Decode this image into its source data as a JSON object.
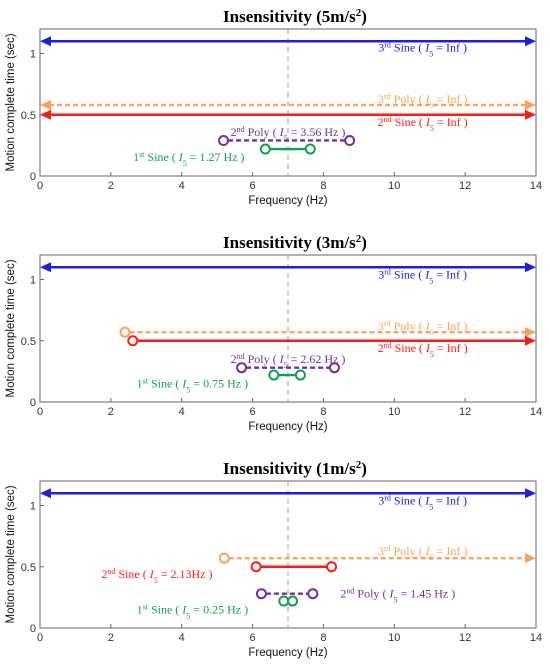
{
  "chart_data": [
    {
      "type": "interval",
      "title": "Insensitivity (5m/s2)",
      "title_main": "Insensitivity (5m/s",
      "title_exp": "2",
      "title_tail": ")",
      "xlabel": "Frequency (Hz)",
      "ylabel": "Motion complete time (sec)",
      "xlim": [
        0,
        14
      ],
      "ylim": [
        0,
        1.2
      ],
      "xticks": [
        "0",
        "2",
        "4",
        "6",
        "8",
        "10",
        "12",
        "14"
      ],
      "yticks": [
        "0",
        "0.5",
        "1"
      ],
      "reference_x": 7,
      "series": [
        {
          "key": "s3",
          "ord": "3",
          "sfx": "rd",
          "kind": "Sine",
          "y": 1.1,
          "x0": 0,
          "x1": 14,
          "open_left": true,
          "open_right": true,
          "value": "Inf",
          "unit": "",
          "color": "#1f1fd6",
          "dashed": false,
          "label_at": [
            10.8,
            1.05
          ]
        },
        {
          "key": "p3",
          "ord": "3",
          "sfx": "rd",
          "kind": "Poly",
          "y": 0.58,
          "x0": 0,
          "x1": 14,
          "open_left": true,
          "open_right": true,
          "value": "Inf",
          "unit": "",
          "color": "#f4a460",
          "dashed": true,
          "label_at": [
            10.8,
            0.63
          ]
        },
        {
          "key": "s2",
          "ord": "2",
          "sfx": "nd",
          "kind": "Sine",
          "y": 0.5,
          "x0": 0,
          "x1": 14,
          "open_left": true,
          "open_right": true,
          "value": "Inf",
          "unit": "",
          "color": "#ff1a1a",
          "dashed": false,
          "label_at": [
            10.8,
            0.44
          ]
        },
        {
          "key": "p2",
          "ord": "2",
          "sfx": "nd",
          "kind": "Poly",
          "y": 0.29,
          "x0": 5.18,
          "x1": 8.74,
          "open_left": false,
          "open_right": false,
          "value": "3.56",
          "unit": " Hz",
          "color": "#7030a0",
          "dashed": true,
          "label_at": [
            7.0,
            0.36
          ]
        },
        {
          "key": "s1",
          "ord": "1",
          "sfx": "st",
          "kind": "Sine",
          "y": 0.22,
          "x0": 6.36,
          "x1": 7.63,
          "open_left": false,
          "open_right": false,
          "value": "1.27",
          "unit": " Hz",
          "color": "#10a050",
          "dashed": false,
          "label_at": [
            4.2,
            0.155
          ]
        }
      ]
    },
    {
      "type": "interval",
      "title": "Insensitivity (3m/s2)",
      "title_main": "Insensitivity (3m/s",
      "title_exp": "2",
      "title_tail": ")",
      "xlabel": "Frequency (Hz)",
      "ylabel": "Motion complete time (sec)",
      "xlim": [
        0,
        14
      ],
      "ylim": [
        0,
        1.2
      ],
      "xticks": [
        "0",
        "2",
        "4",
        "6",
        "8",
        "10",
        "12",
        "14"
      ],
      "yticks": [
        "0",
        "0.5",
        "1"
      ],
      "reference_x": 7,
      "series": [
        {
          "key": "s3",
          "ord": "3",
          "sfx": "rd",
          "kind": "Sine",
          "y": 1.1,
          "x0": 0,
          "x1": 14,
          "open_left": true,
          "open_right": true,
          "value": "Inf",
          "unit": "",
          "color": "#1f1fd6",
          "dashed": false,
          "label_at": [
            10.8,
            1.04
          ]
        },
        {
          "key": "p3",
          "ord": "3",
          "sfx": "rd",
          "kind": "Poly",
          "y": 0.57,
          "x0": 2.4,
          "x1": 14,
          "open_left": false,
          "open_right": true,
          "value": "Inf",
          "unit": "",
          "color": "#f4a460",
          "dashed": true,
          "label_at": [
            10.8,
            0.62
          ]
        },
        {
          "key": "s2",
          "ord": "2",
          "sfx": "nd",
          "kind": "Sine",
          "y": 0.5,
          "x0": 2.62,
          "x1": 14,
          "open_left": false,
          "open_right": true,
          "value": "Inf",
          "unit": "",
          "color": "#ff1a1a",
          "dashed": false,
          "label_at": [
            10.8,
            0.44
          ]
        },
        {
          "key": "p2",
          "ord": "2",
          "sfx": "nd",
          "kind": "Poly",
          "y": 0.28,
          "x0": 5.69,
          "x1": 8.31,
          "open_left": false,
          "open_right": false,
          "value": "2.62",
          "unit": " Hz",
          "color": "#7030a0",
          "dashed": true,
          "label_at": [
            7.0,
            0.35
          ]
        },
        {
          "key": "s1",
          "ord": "1",
          "sfx": "st",
          "kind": "Sine",
          "y": 0.22,
          "x0": 6.6,
          "x1": 7.35,
          "open_left": false,
          "open_right": false,
          "value": "0.75",
          "unit": " Hz",
          "color": "#10a050",
          "dashed": false,
          "label_at": [
            4.3,
            0.15
          ]
        }
      ]
    },
    {
      "type": "interval",
      "title": "Insensitivity (1m/s2)",
      "title_main": "Insensitivity (1m/s",
      "title_exp": "2",
      "title_tail": ")",
      "xlabel": "Frequency (Hz)",
      "ylabel": "Motion complete time (sec)",
      "xlim": [
        0,
        14
      ],
      "ylim": [
        0,
        1.2
      ],
      "xticks": [
        "0",
        "2",
        "4",
        "6",
        "8",
        "10",
        "12",
        "14"
      ],
      "yticks": [
        "0",
        "0.5",
        "1"
      ],
      "reference_x": 7,
      "series": [
        {
          "key": "s3",
          "ord": "3",
          "sfx": "rd",
          "kind": "Sine",
          "y": 1.1,
          "x0": 0,
          "x1": 14,
          "open_left": true,
          "open_right": true,
          "value": "Inf",
          "unit": "",
          "color": "#1f1fd6",
          "dashed": false,
          "label_at": [
            10.8,
            1.04
          ]
        },
        {
          "key": "p3",
          "ord": "3",
          "sfx": "rd",
          "kind": "Poly",
          "y": 0.57,
          "x0": 5.2,
          "x1": 14,
          "open_left": false,
          "open_right": true,
          "value": "Inf",
          "unit": "",
          "color": "#f4a460",
          "dashed": true,
          "label_at": [
            10.8,
            0.63
          ]
        },
        {
          "key": "s2",
          "ord": "2",
          "sfx": "nd",
          "kind": "Sine",
          "y": 0.5,
          "x0": 6.1,
          "x1": 8.23,
          "open_left": false,
          "open_right": false,
          "value": "2.13",
          "unit": "Hz",
          "color": "#ff1a1a",
          "dashed": false,
          "label_at": [
            3.3,
            0.44
          ]
        },
        {
          "key": "p2",
          "ord": "2",
          "sfx": "nd",
          "kind": "Poly",
          "y": 0.28,
          "x0": 6.25,
          "x1": 7.7,
          "open_left": false,
          "open_right": false,
          "value": "1.45",
          "unit": " Hz",
          "color": "#7030a0",
          "dashed": true,
          "label_at": [
            10.1,
            0.28
          ]
        },
        {
          "key": "s1",
          "ord": "1",
          "sfx": "st",
          "kind": "Sine",
          "y": 0.22,
          "x0": 6.88,
          "x1": 7.13,
          "open_left": false,
          "open_right": false,
          "value": "0.25",
          "unit": " Hz",
          "color": "#10a050",
          "dashed": false,
          "label_at": [
            4.3,
            0.15
          ]
        }
      ]
    }
  ]
}
